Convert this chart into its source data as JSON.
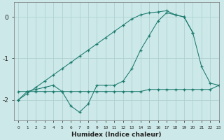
{
  "x_full": [
    0,
    1,
    2,
    3,
    4,
    5,
    6,
    7,
    8,
    9,
    10,
    11,
    12,
    13,
    14,
    15,
    16,
    17,
    18,
    19,
    20,
    21,
    22,
    23
  ],
  "line_flat": [
    -1.8,
    -1.8,
    -1.8,
    -1.8,
    -1.8,
    -1.8,
    -1.8,
    -1.8,
    -1.8,
    -1.8,
    -1.8,
    -1.8,
    -1.8,
    -1.8,
    -1.8,
    -1.75,
    -1.75,
    -1.75,
    -1.75,
    -1.75,
    -1.75,
    -1.75,
    -1.75,
    -1.65
  ],
  "line_zigzag_x": [
    0,
    1,
    2,
    3,
    4,
    5,
    6,
    7,
    8,
    9,
    10,
    11,
    12,
    13,
    14,
    15,
    16,
    17,
    18,
    19,
    20,
    21,
    22,
    23
  ],
  "line_zigzag_y": [
    -2.0,
    -1.8,
    -1.75,
    -1.7,
    -1.65,
    -1.8,
    -2.15,
    -2.3,
    -2.1,
    -1.65,
    -1.65,
    -1.65,
    -1.55,
    -1.25,
    -0.8,
    -0.45,
    -0.1,
    0.1,
    0.05,
    0.0,
    -0.38,
    -1.2,
    -1.6,
    -1.65
  ],
  "line_diag_x": [
    0,
    1,
    2,
    3,
    4,
    5,
    6,
    7,
    8,
    9,
    10,
    11,
    12,
    13,
    14,
    15,
    16,
    17,
    18,
    19,
    20
  ],
  "line_diag_y": [
    -2.0,
    -1.85,
    -1.7,
    -1.55,
    -1.4,
    -1.25,
    -1.1,
    -0.95,
    -0.8,
    -0.65,
    -0.5,
    -0.35,
    -0.2,
    -0.05,
    0.05,
    0.1,
    0.12,
    0.15,
    0.05,
    0.0,
    -0.38
  ],
  "color": "#1a7a6e",
  "bg_color": "#cce8e8",
  "grid_color": "#aacece",
  "xlabel": "Humidex (Indice chaleur)",
  "ylim": [
    -2.5,
    0.35
  ],
  "xlim": [
    -0.5,
    23
  ]
}
